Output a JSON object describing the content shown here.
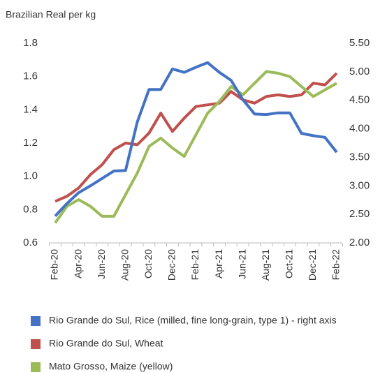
{
  "chart_data": {
    "type": "line",
    "y_label": "Brazilian Real per kg",
    "categories": [
      "Feb-20",
      null,
      "Apr-20",
      null,
      "Jun-20",
      null,
      "Aug-20",
      null,
      "Oct-20",
      null,
      "Dec-20",
      null,
      "Feb-21",
      null,
      "Apr-21",
      null,
      "Jun-21",
      null,
      "Aug-21",
      null,
      "Oct-21",
      null,
      "Dec-21",
      null,
      "Feb-22"
    ],
    "series": [
      {
        "name": "Rio Grande do Sul, Rice (milled, fine long-grain, type 1) - right axis",
        "color": "#4472c4",
        "axis": "y2",
        "values": [
          2.47,
          2.69,
          2.88,
          3.0,
          3.13,
          3.26,
          3.27,
          4.12,
          4.69,
          4.69,
          5.05,
          4.99,
          5.08,
          5.16,
          4.99,
          4.85,
          4.51,
          4.26,
          4.25,
          4.28,
          4.28,
          3.92,
          3.88,
          3.85,
          3.59
        ]
      },
      {
        "name": "Rio Grande do Sul, Wheat",
        "color": "#c0504d",
        "values": [
          0.85,
          0.88,
          0.93,
          1.01,
          1.07,
          1.16,
          1.2,
          1.19,
          1.26,
          1.38,
          1.27,
          1.35,
          1.42,
          1.43,
          1.44,
          1.51,
          1.46,
          1.44,
          1.48,
          1.49,
          1.48,
          1.49,
          1.56,
          1.55,
          1.62
        ]
      },
      {
        "name": "Mato Grosso, Maize (yellow)",
        "color": "#9bbb59",
        "values": [
          0.72,
          0.82,
          0.86,
          0.82,
          0.76,
          0.76,
          0.89,
          1.02,
          1.18,
          1.23,
          1.17,
          1.12,
          1.25,
          1.38,
          1.45,
          1.54,
          1.49,
          1.56,
          1.63,
          1.62,
          1.6,
          1.54,
          1.48,
          1.52,
          1.56
        ]
      }
    ],
    "ylim": [
      0.6,
      1.8
    ],
    "yticks": [
      0.6,
      0.8,
      {
        "value": 1,
        "label": "1.0"
      },
      1.2,
      1.4,
      1.6,
      1.8
    ],
    "y2lim": [
      2,
      5.5
    ],
    "y2ticks": [
      {
        "value": 2,
        "label": "2.00"
      },
      {
        "value": 2.5,
        "label": "2.50"
      },
      {
        "value": 3,
        "label": "3.00"
      },
      {
        "value": 3.5,
        "label": "3.50"
      },
      {
        "value": 4,
        "label": "4.00"
      },
      {
        "value": 4.5,
        "label": "4.50"
      },
      {
        "value": 5,
        "label": "5.00"
      },
      {
        "value": 5.5,
        "label": "5.50"
      }
    ],
    "grid": false,
    "legend": "bottom"
  }
}
